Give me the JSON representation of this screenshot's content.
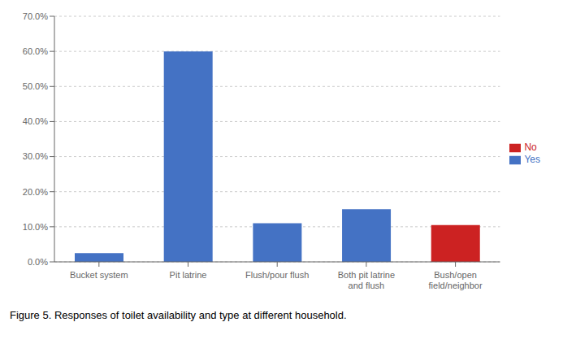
{
  "chart_data": {
    "type": "bar",
    "title": "Figure 5. Responses of toilet availability and type at different household.",
    "categories": [
      "Bucket system",
      "Pit latrine",
      "Flush/pour flush",
      "Both pit latrine\nand flush",
      "Bush/open\nfield/neighbor"
    ],
    "series": [
      {
        "name": "Yes",
        "color": "#4472C4",
        "values": [
          2.5,
          60.0,
          11.0,
          15.0,
          0.0
        ]
      },
      {
        "name": "No",
        "color": "#CC2222",
        "values": [
          0.0,
          0.0,
          0.0,
          0.0,
          10.5
        ]
      }
    ],
    "ylim": [
      0,
      70
    ],
    "yticks": [
      {
        "value": 0,
        "label": "0.0%"
      },
      {
        "value": 10,
        "label": "10.0%"
      },
      {
        "value": 20,
        "label": "20.0%"
      },
      {
        "value": 30,
        "label": "30.0%"
      },
      {
        "value": 40,
        "label": "40.0%"
      },
      {
        "value": 50,
        "label": "50.0%"
      },
      {
        "value": 60,
        "label": "60.0%"
      },
      {
        "value": 70,
        "label": "70.0%"
      }
    ],
    "grid": true,
    "legend": "right",
    "stacked": true
  }
}
